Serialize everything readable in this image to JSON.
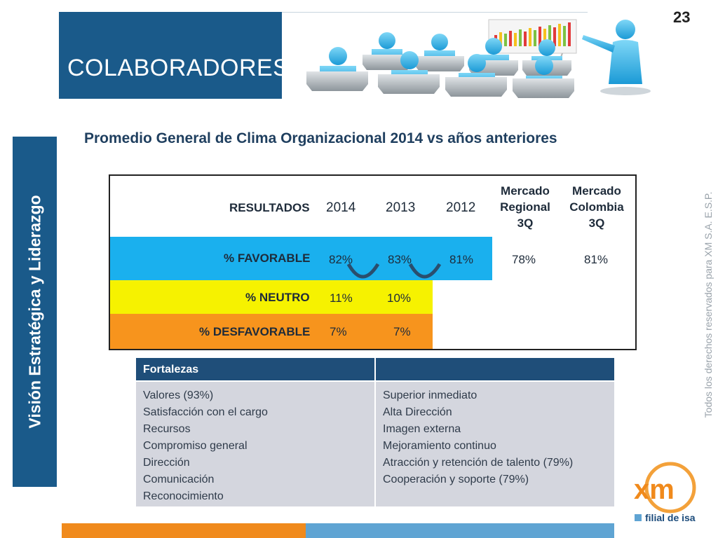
{
  "page_number": "23",
  "header": {
    "title": "COLABORADORES"
  },
  "sidebar": {
    "vertical_title": "Visión Estratégica y Liderazgo"
  },
  "rights": "Todos los derechos reservados para XM S.A. E.S.P.",
  "subtitle": "Promedio General de Clima Organizacional 2014 vs años anteriores",
  "results": {
    "header_label": "RESULTADOS",
    "years": [
      "2014",
      "2013",
      "2012"
    ],
    "market_regional": [
      "Mercado",
      "Regional",
      "3Q"
    ],
    "market_colombia": [
      "Mercado",
      "Colombia",
      "3Q"
    ],
    "rows": [
      {
        "label": "% FAVORABLE",
        "values": [
          "82%",
          "83%",
          "81%",
          "78%",
          "81%"
        ],
        "color": "#1ab0ee"
      },
      {
        "label": "% NEUTRO",
        "values": [
          "11%",
          "10%"
        ],
        "color": "#f6f200"
      },
      {
        "label": "% DESFAVORABLE",
        "values": [
          "7%",
          "7%"
        ],
        "color": "#f7941d"
      }
    ]
  },
  "strengths": {
    "header_left": "Fortalezas",
    "header_right": "",
    "left_items": [
      "Valores (93%)",
      "Satisfacción con el cargo",
      "Recursos",
      "Compromiso general",
      "Dirección",
      "Comunicación",
      "Reconocimiento"
    ],
    "right_items": [
      "Superior inmediato",
      "Alta Dirección",
      "Imagen externa",
      "Mejoramiento continuo",
      "Atracción y retención de talento (79%)",
      "Cooperación y soporte (79%)"
    ]
  },
  "logo": {
    "text": "xm",
    "caption": "filial de isa"
  },
  "colors": {
    "primary_blue": "#1a5a8a",
    "table_header": "#1f4e79",
    "orange": "#f08a1c",
    "light_blue": "#5fa4d3"
  }
}
